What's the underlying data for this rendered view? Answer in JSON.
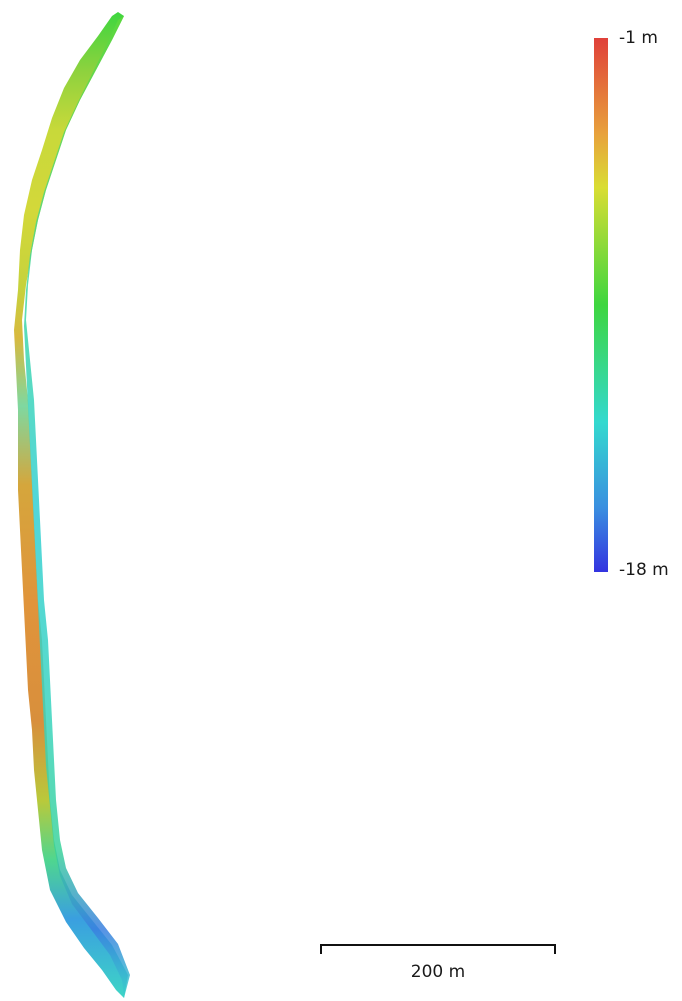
{
  "legend": {
    "max_label": "-1 m",
    "min_label": "-18 m",
    "range_m": [
      -18,
      -1
    ],
    "gradient_colors": [
      "#e0403a",
      "#e8a23c",
      "#d9dd33",
      "#3ed63f",
      "#33d9cf",
      "#3a8fe0",
      "#3333e0"
    ]
  },
  "scale_bar": {
    "label": "200 m",
    "length_m": 200
  },
  "map": {
    "type": "elevation-model",
    "feature": "elevation-strip"
  }
}
